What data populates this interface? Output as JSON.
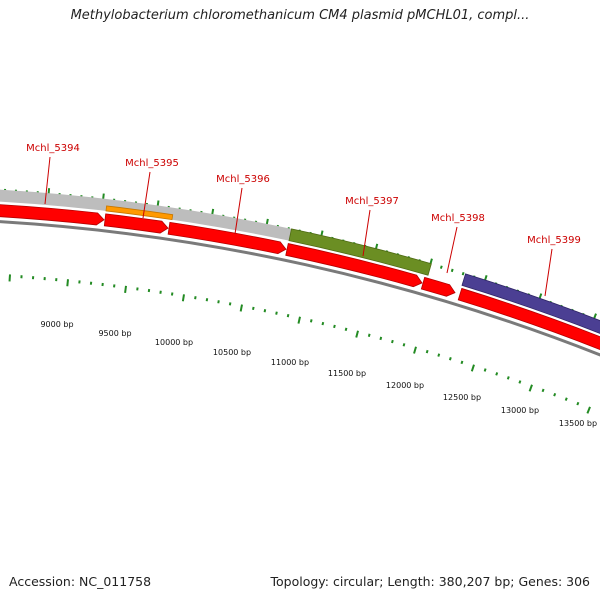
{
  "title": "Methylobacterium chloromethanicum CM4 plasmid pMCHL01, compl...",
  "footer": {
    "accession": "Accession: NC_011758",
    "summary": "Topology: circular; Length: 380,207 bp; Genes: 306"
  },
  "colors": {
    "cds_red": "#ff0000",
    "cds_red_dark": "#b40000",
    "tick_green": "#238b23",
    "label_red": "#cc0000",
    "track_gray": "#bdbdbd",
    "band_orange": "#ff9900",
    "band_olive": "#6b8e23",
    "band_purple": "#4b3f93"
  },
  "gene_labels": [
    "Mchl_5394",
    "Mchl_5395",
    "Mchl_5396",
    "Mchl_5397",
    "Mchl_5398",
    "Mchl_5399"
  ],
  "bp_labels": [
    "9000 bp",
    "9500 bp",
    "10000 bp",
    "10500 bp",
    "11000 bp",
    "11500 bp",
    "12000 bp",
    "12500 bp",
    "13000 bp",
    "13500 bp"
  ]
}
